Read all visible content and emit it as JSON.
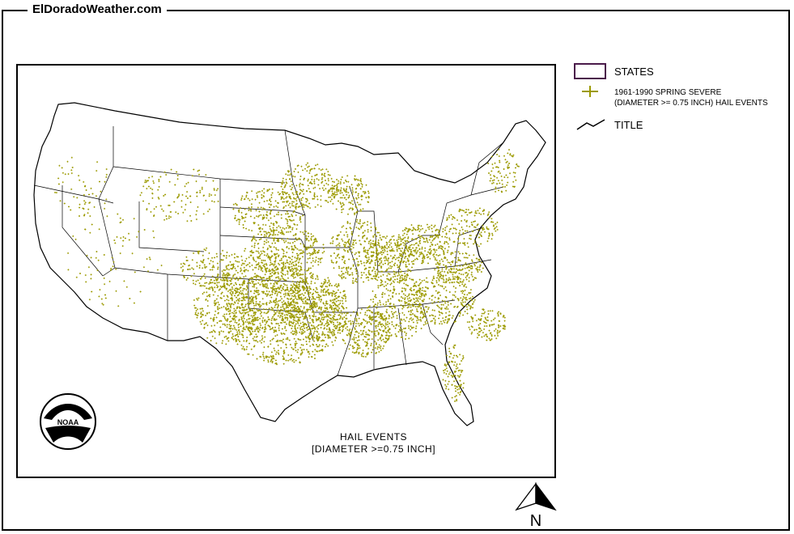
{
  "header": {
    "site_title": "ElDoradoWeather.com"
  },
  "legend": {
    "states_label": "STATES",
    "hail_label_line1": "1961-1990 SPRING SEVERE",
    "hail_label_line2": "(DIAMETER >= 0.75 INCH) HAIL EVENTS",
    "title_label": "TITLE",
    "state_outline_color": "#4a1a4a",
    "hail_marker_color": "#9c9a00"
  },
  "map": {
    "caption_line1": "HAIL EVENTS",
    "caption_line2": "[DIAMETER >=0.75 INCH]",
    "logo_text": "NOAA",
    "north_label": "N"
  }
}
